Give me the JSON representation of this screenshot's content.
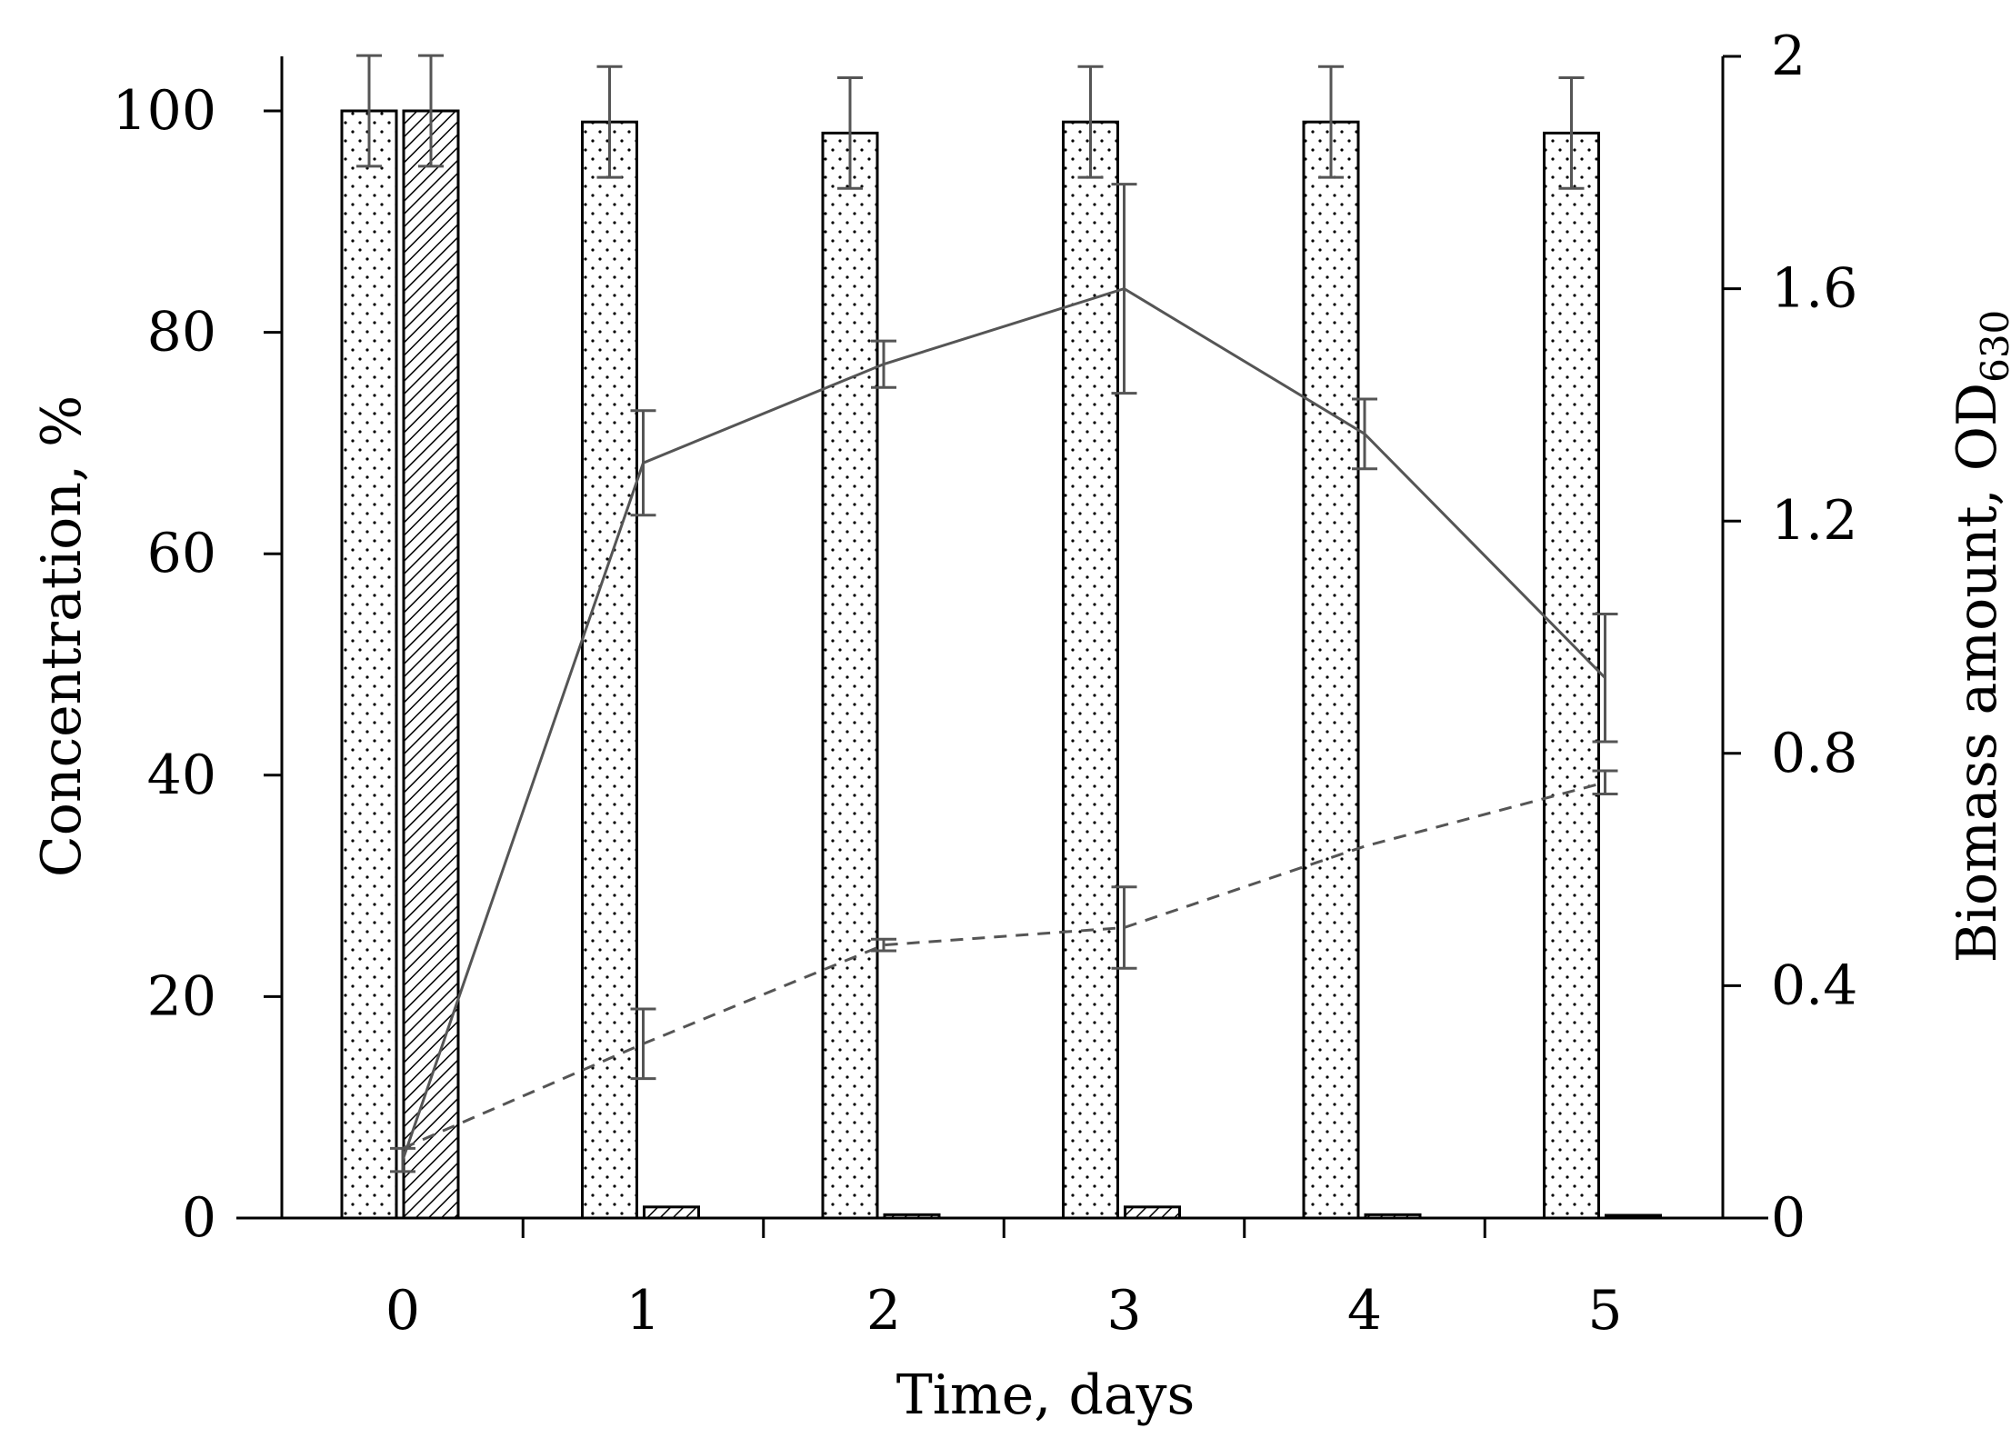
{
  "chart_data": {
    "type": "bar",
    "categories": [
      "0",
      "1",
      "2",
      "3",
      "4",
      "5"
    ],
    "xlabel": "Time, days",
    "ylabel": "Concentration, %",
    "y2label_main": "Biomass amount, OD",
    "y2label_sub": "630",
    "ylim": [
      0,
      100
    ],
    "y2lim": [
      0,
      2
    ],
    "yticks": [
      "0",
      "20",
      "40",
      "60",
      "80",
      "100"
    ],
    "y2ticks": [
      "0",
      "0.4",
      "0.8",
      "1.2",
      "1.6",
      "2"
    ],
    "bar_series": [
      {
        "pattern": "dotted",
        "values": [
          100,
          99,
          98,
          99,
          99,
          98
        ],
        "errors": [
          5,
          5,
          5,
          5,
          5,
          5
        ]
      },
      {
        "pattern": "hatched",
        "values": [
          100,
          1,
          0.3,
          1,
          0.3,
          0
        ],
        "errors": [
          5,
          0,
          0,
          0,
          0,
          0
        ]
      }
    ],
    "line_series": [
      {
        "style": "solid",
        "axis": "right",
        "values": [
          0.1,
          1.3,
          1.47,
          1.6,
          1.35,
          0.93
        ],
        "errors": [
          0.02,
          0.09,
          0.04,
          0.18,
          0.06,
          0.11
        ]
      },
      {
        "style": "dashed",
        "axis": "right",
        "values": [
          0.12,
          0.3,
          0.47,
          0.5,
          0.64,
          0.75
        ],
        "errors": [
          0,
          0.06,
          0.01,
          0.07,
          0,
          0.02
        ]
      }
    ],
    "grid": false,
    "legend": "none"
  },
  "colors": {
    "axis": "#000000",
    "bar_stroke": "#000000",
    "bar_fill": "#ffffff",
    "line": "#555555",
    "error": "#555555"
  }
}
